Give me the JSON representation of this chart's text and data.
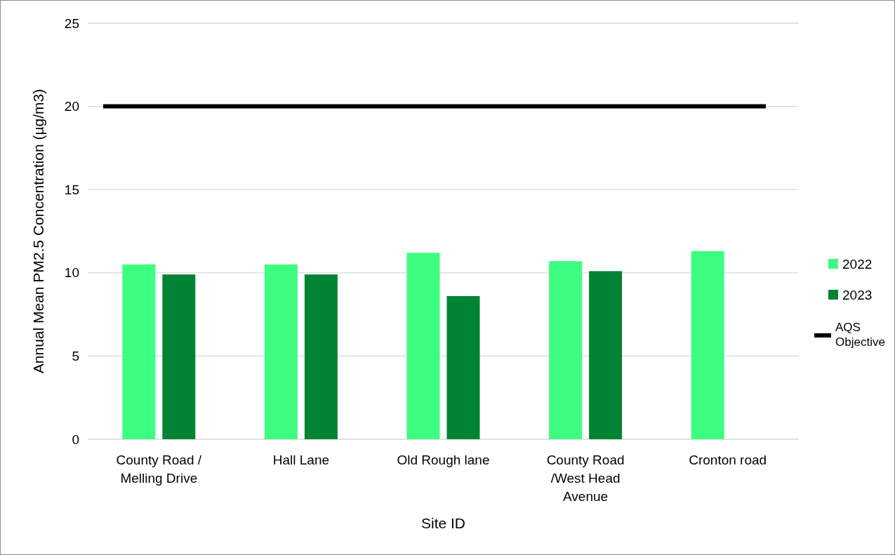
{
  "chart_data": {
    "type": "bar",
    "xlabel": "Site ID",
    "ylabel": "Annual Mean PM2.5 Concentration (µg/m3)",
    "categories": [
      "County Road / Melling Drive",
      "Hall Lane",
      "Old Rough lane",
      "County Road /West Head Avenue",
      "Cronton road"
    ],
    "series": [
      {
        "name": "2022",
        "color": "#3dfe80",
        "values": [
          10.5,
          10.5,
          11.2,
          10.7,
          11.3
        ]
      },
      {
        "name": "2023",
        "color": "#008433",
        "values": [
          9.9,
          9.9,
          8.6,
          10.1,
          null
        ]
      }
    ],
    "ylim": [
      0,
      25
    ],
    "yticks": [
      0,
      5,
      10,
      15,
      20,
      25
    ],
    "grid": "y",
    "legend": "right",
    "ref_lines": [
      {
        "axis": "y",
        "value": 20,
        "label": "AQS Objective",
        "color": "#000000"
      }
    ]
  }
}
